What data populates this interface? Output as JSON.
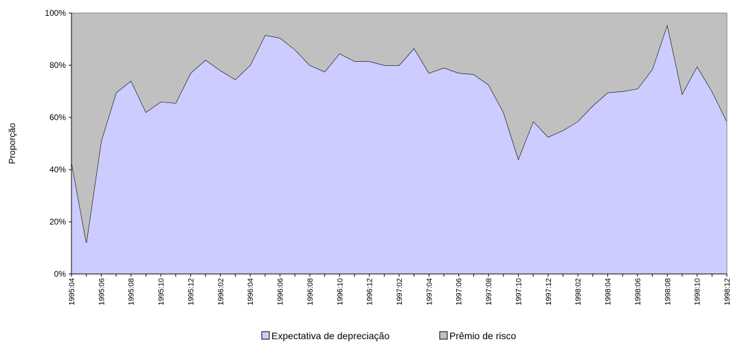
{
  "chart_data": {
    "type": "stacked-area",
    "y_label": "Proporção",
    "categories": [
      "1995:04",
      null,
      "1995:06",
      null,
      "1995:08",
      null,
      "1995:10",
      null,
      "1995:12",
      null,
      "1996:02",
      null,
      "1996:04",
      null,
      "1996:06",
      null,
      "1996:08",
      null,
      "1996:10",
      null,
      "1996:12",
      null,
      "1997:02",
      null,
      "1997:04",
      null,
      "1997:06",
      null,
      "1997:08",
      null,
      "1997:10",
      null,
      "1997:12",
      null,
      "1998:02",
      null,
      "1998:04",
      null,
      "1998:06",
      null,
      "1998:08",
      null,
      "1998:10",
      null,
      "1998:12"
    ],
    "series": [
      {
        "name": "Expectativa de depreciação",
        "color": "#ccccff",
        "values": [
          43,
          12,
          51,
          69.5,
          74,
          62,
          66,
          65.5,
          77,
          82,
          78,
          74.5,
          80,
          91.5,
          90.5,
          86,
          80,
          77.5,
          84.5,
          81.5,
          81.5,
          80,
          80,
          86.5,
          77,
          79,
          77,
          76.5,
          72.5,
          62,
          44,
          58.5,
          52.5,
          55,
          58.5,
          64.5,
          69.5,
          70,
          71,
          78.5,
          95.5,
          69,
          79.5,
          70,
          58.5
        ]
      },
      {
        "name": "Prêmio de risco",
        "color": "#c0c0c0",
        "values": [
          57,
          88,
          49,
          30.5,
          26,
          38,
          34,
          34.5,
          23,
          18,
          22,
          25.5,
          20,
          8.5,
          9.5,
          14,
          20,
          22.5,
          15.5,
          18.5,
          18.5,
          20,
          20,
          13.5,
          23,
          21,
          23,
          23.5,
          27.5,
          38,
          56,
          41.5,
          47.5,
          45,
          41.5,
          35.5,
          30.5,
          30,
          29,
          21.5,
          4.5,
          31,
          20.5,
          30,
          41.5
        ]
      }
    ],
    "ylim": [
      0,
      100
    ],
    "yticks": [
      {
        "value": 0,
        "label": "0%"
      },
      {
        "value": 20,
        "label": "20%"
      },
      {
        "value": 40,
        "label": "40%"
      },
      {
        "value": 60,
        "label": "60%"
      },
      {
        "value": 80,
        "label": "80%"
      },
      {
        "value": 100,
        "label": "100%"
      }
    ],
    "legend": "bottom"
  }
}
